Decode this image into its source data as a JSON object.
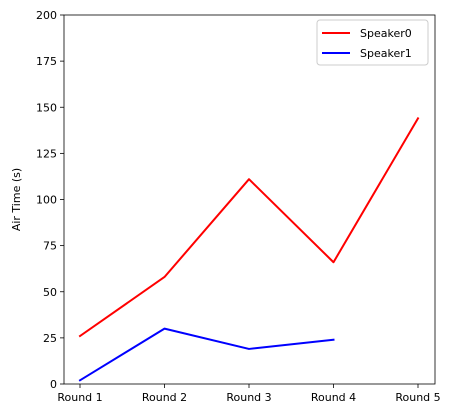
{
  "chart_data": {
    "type": "line",
    "categories": [
      "Round 1",
      "Round 2",
      "Round 3",
      "Round 4",
      "Round 5"
    ],
    "ylabel": "Air Time (s)",
    "xlabel": "",
    "title": "",
    "ylim": [
      0,
      200
    ],
    "yticks": [
      0,
      25,
      50,
      75,
      100,
      125,
      150,
      175,
      200
    ],
    "grid": false,
    "legend_position": "top-right",
    "series": [
      {
        "name": "Speaker0",
        "color": "#ff0000",
        "values": [
          26,
          58,
          111,
          66,
          144
        ]
      },
      {
        "name": "Speaker1",
        "color": "#0000ff",
        "values": [
          2,
          30,
          19,
          24,
          null
        ]
      }
    ]
  }
}
